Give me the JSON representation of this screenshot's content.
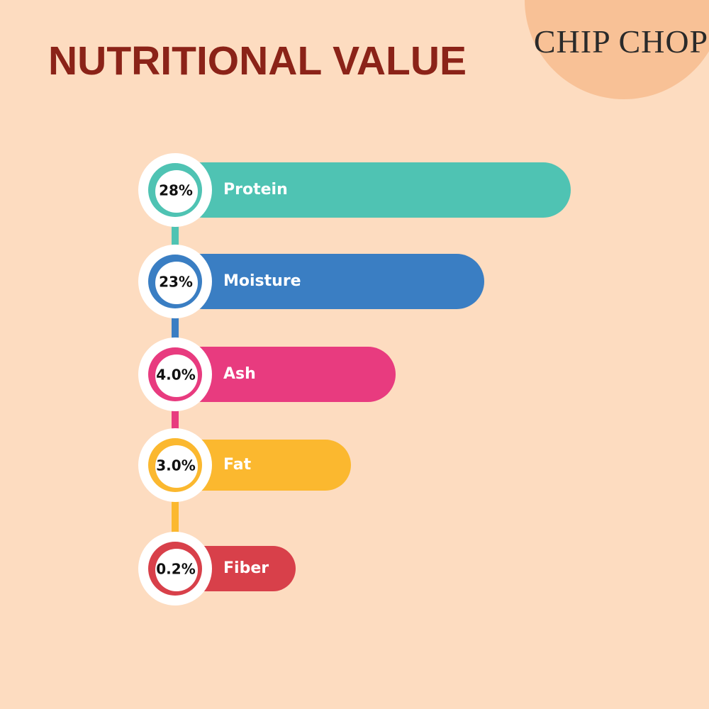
{
  "header": {
    "title": "NUTRITIONAL VALUE",
    "logo": "CHIP CHOP"
  },
  "items": [
    {
      "value": "28%",
      "label": "Protein"
    },
    {
      "value": "23%",
      "label": "Moisture"
    },
    {
      "value": "4.0%",
      "label": "Ash"
    },
    {
      "value": "3.0%",
      "label": "Fat"
    },
    {
      "value": "0.2%",
      "label": "Fiber"
    }
  ]
}
